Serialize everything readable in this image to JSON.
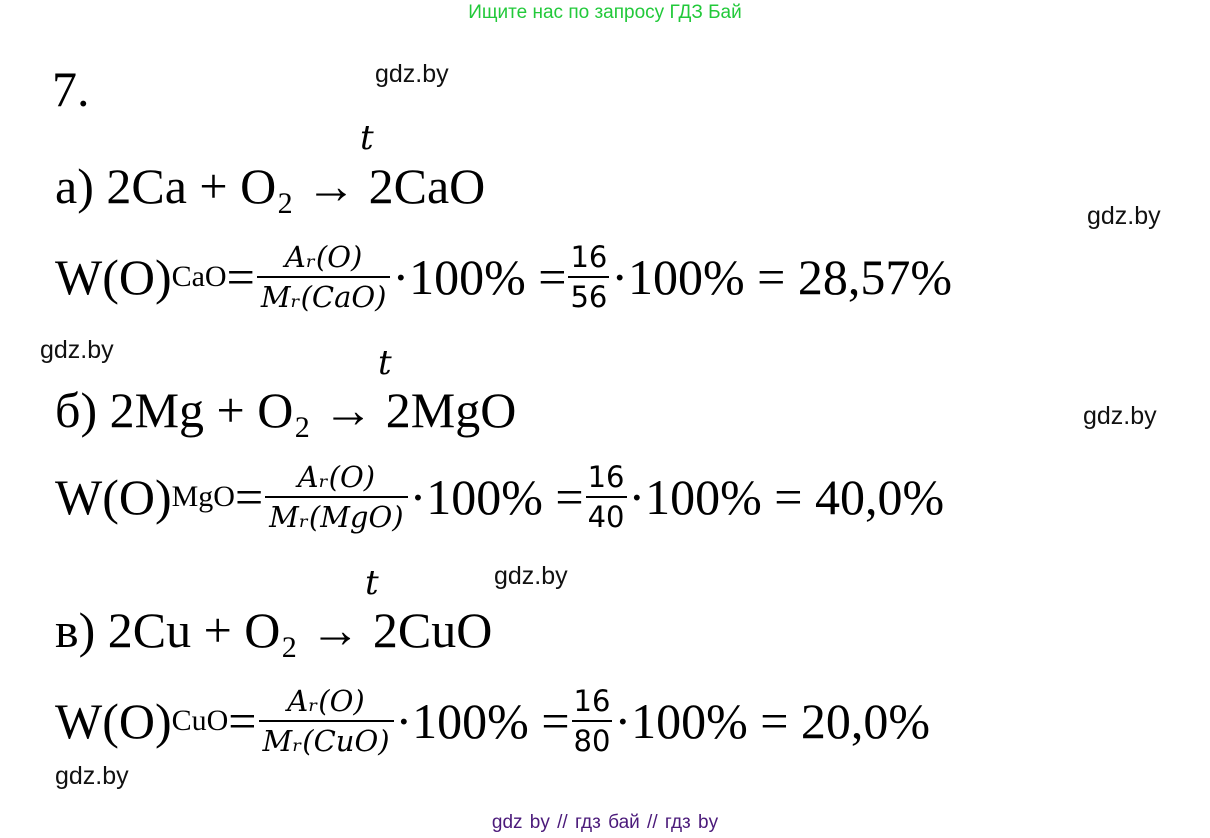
{
  "banner": "Ищите нас по запросу ГДЗ Бай",
  "task_number": "7.",
  "watermark": "gdz.by",
  "footer": "gdz by  //  гдз бай  //  гдз by",
  "parts": [
    {
      "reaction": "а) 2Ca + O₂ → 2CaO",
      "condition": "t",
      "w_label": "W(O)",
      "w_sub": "CaO",
      "eq1": " =",
      "num": "Aᵣ(O)",
      "den": "Mᵣ(CaO)",
      "mid": "·100% =",
      "n2": "16",
      "d2": "56",
      "tail": "·100% = 28,57%"
    },
    {
      "reaction": "б) 2Mg + O₂ → 2MgO",
      "condition": "t",
      "w_label": "W(O)",
      "w_sub": "MgO",
      "eq1": " =",
      "num": "Aᵣ(O)",
      "den": "Mᵣ(MgO)",
      "mid": "·100% =",
      "n2": "16",
      "d2": "40",
      "tail": "·100% = 40,0%"
    },
    {
      "reaction": "в) 2Cu + O₂ → 2CuO",
      "condition": "t",
      "w_label": "W(O)",
      "w_sub": "CuO",
      "eq1": " =",
      "num": "Aᵣ(O)",
      "den": "Mᵣ(CuO)",
      "mid": "·100% =",
      "n2": "16",
      "d2": "80",
      "tail": "·100% = 20,0%"
    }
  ]
}
